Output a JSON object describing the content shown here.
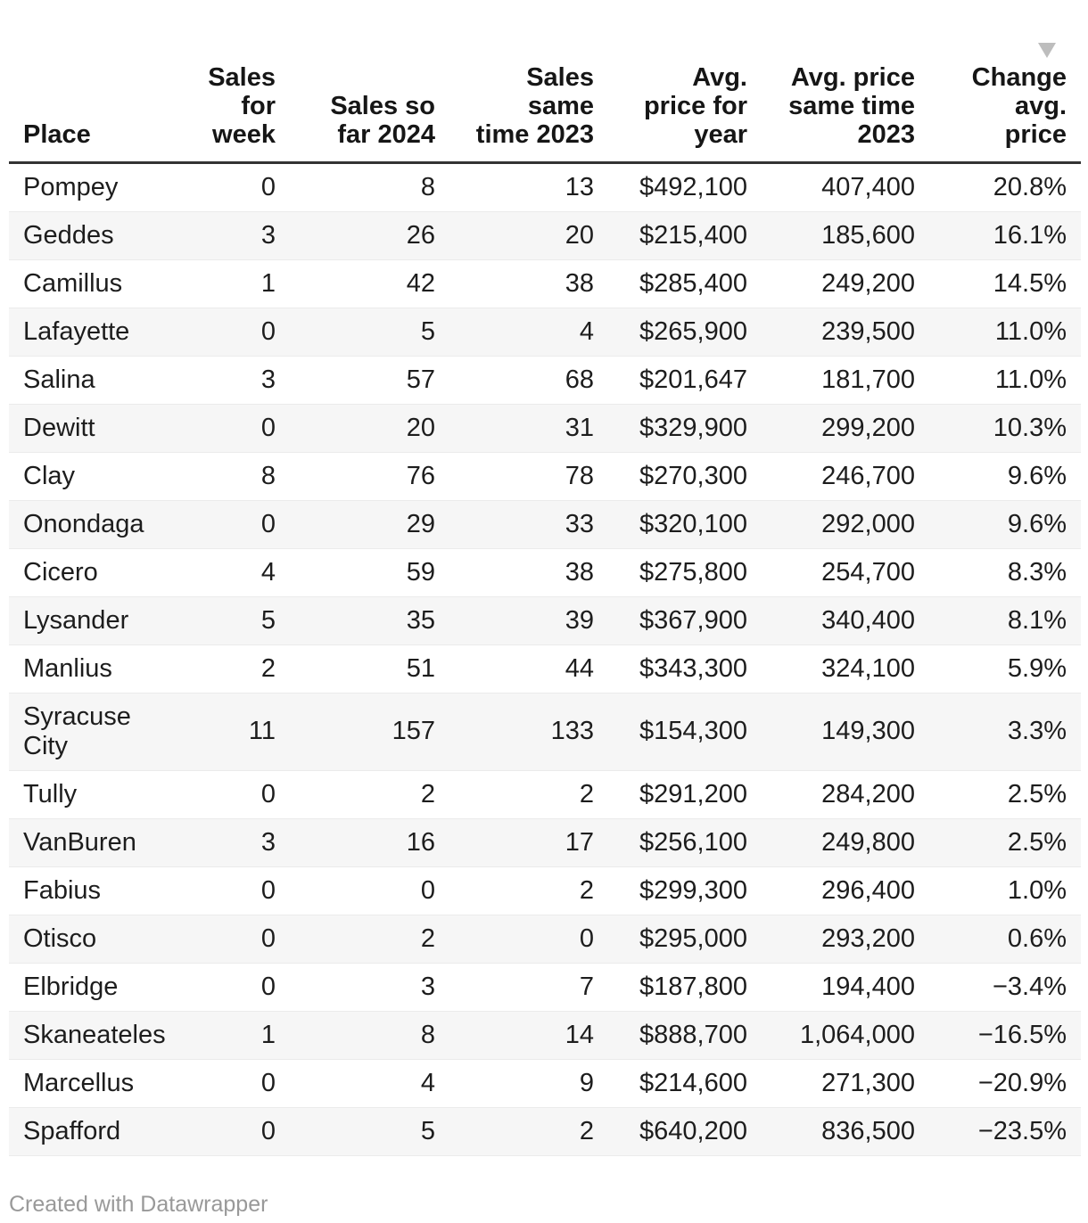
{
  "chart_data": {
    "type": "table",
    "sorted_column": "Change avg. price",
    "sort_direction": "descending",
    "columns": [
      {
        "key": "place",
        "label": "Place",
        "align": "left"
      },
      {
        "key": "sales_for_week",
        "label": "Sales\nfor\nweek",
        "align": "right"
      },
      {
        "key": "sales_so_far_2024",
        "label": "Sales so\nfar 2024",
        "align": "right"
      },
      {
        "key": "sales_same_time_2023",
        "label": "Sales\nsame\ntime 2023",
        "align": "right"
      },
      {
        "key": "avg_price_for_year",
        "label": "Avg.\nprice for\nyear",
        "align": "right"
      },
      {
        "key": "avg_price_same_time_2023",
        "label": "Avg. price\nsame time\n2023",
        "align": "right"
      },
      {
        "key": "change_avg_price",
        "label": "Change\navg.\nprice",
        "align": "right",
        "sorted": "descending"
      }
    ],
    "rows": [
      [
        "Pompey",
        "0",
        "8",
        "13",
        "$492,100",
        "407,400",
        "20.8%"
      ],
      [
        "Geddes",
        "3",
        "26",
        "20",
        "$215,400",
        "185,600",
        "16.1%"
      ],
      [
        "Camillus",
        "1",
        "42",
        "38",
        "$285,400",
        "249,200",
        "14.5%"
      ],
      [
        "Lafayette",
        "0",
        "5",
        "4",
        "$265,900",
        "239,500",
        "11.0%"
      ],
      [
        "Salina",
        "3",
        "57",
        "68",
        "$201,647",
        "181,700",
        "11.0%"
      ],
      [
        "Dewitt",
        "0",
        "20",
        "31",
        "$329,900",
        "299,200",
        "10.3%"
      ],
      [
        "Clay",
        "8",
        "76",
        "78",
        "$270,300",
        "246,700",
        "9.6%"
      ],
      [
        "Onondaga",
        "0",
        "29",
        "33",
        "$320,100",
        "292,000",
        "9.6%"
      ],
      [
        "Cicero",
        "4",
        "59",
        "38",
        "$275,800",
        "254,700",
        "8.3%"
      ],
      [
        "Lysander",
        "5",
        "35",
        "39",
        "$367,900",
        "340,400",
        "8.1%"
      ],
      [
        "Manlius",
        "2",
        "51",
        "44",
        "$343,300",
        "324,100",
        "5.9%"
      ],
      [
        "Syracuse City",
        "11",
        "157",
        "133",
        "$154,300",
        "149,300",
        "3.3%"
      ],
      [
        "Tully",
        "0",
        "2",
        "2",
        "$291,200",
        "284,200",
        "2.5%"
      ],
      [
        "VanBuren",
        "3",
        "16",
        "17",
        "$256,100",
        "249,800",
        "2.5%"
      ],
      [
        "Fabius",
        "0",
        "0",
        "2",
        "$299,300",
        "296,400",
        "1.0%"
      ],
      [
        "Otisco",
        "0",
        "2",
        "0",
        "$295,000",
        "293,200",
        "0.6%"
      ],
      [
        "Elbridge",
        "0",
        "3",
        "7",
        "$187,800",
        "194,400",
        "−3.4%"
      ],
      [
        "Skaneateles",
        "1",
        "8",
        "14",
        "$888,700",
        "1,064,000",
        "−16.5%"
      ],
      [
        "Marcellus",
        "0",
        "4",
        "9",
        "$214,600",
        "271,300",
        "−20.9%"
      ],
      [
        "Spafford",
        "0",
        "5",
        "2",
        "$640,200",
        "836,500",
        "−23.5%"
      ]
    ]
  },
  "footer": {
    "credit": "Created with Datawrapper"
  },
  "colors": {
    "body_text": "#1d1d1d",
    "header_text": "#161616",
    "header_rule": "#333333",
    "row_stripe": "#f6f6f6",
    "row_border": "#ebebeb",
    "sort_arrow": "#bdbdbd",
    "footer_text": "#999999"
  }
}
